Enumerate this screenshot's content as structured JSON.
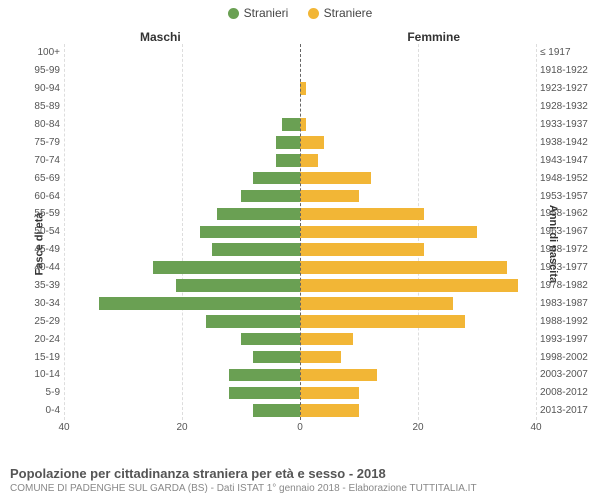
{
  "legend": {
    "left_label": "Stranieri",
    "right_label": "Straniere",
    "male_color": "#6aa053",
    "female_color": "#f2b636"
  },
  "headers": {
    "left": "Maschi",
    "right": "Femmine"
  },
  "axis_labels": {
    "left": "Fasce di età",
    "right": "Anni di nascita"
  },
  "chart": {
    "type": "population-pyramid",
    "xlim": 40,
    "xticks": [
      40,
      20,
      0,
      20,
      40
    ],
    "background_color": "#ffffff",
    "grid_color": "#dddddd",
    "center_line_color": "#666666",
    "bar_fill_ratio": 0.7,
    "categories": [
      {
        "age": "100+",
        "year": "≤ 1917",
        "male": 0,
        "female": 0
      },
      {
        "age": "95-99",
        "year": "1918-1922",
        "male": 0,
        "female": 0
      },
      {
        "age": "90-94",
        "year": "1923-1927",
        "male": 0,
        "female": 1
      },
      {
        "age": "85-89",
        "year": "1928-1932",
        "male": 0,
        "female": 0
      },
      {
        "age": "80-84",
        "year": "1933-1937",
        "male": 3,
        "female": 1
      },
      {
        "age": "75-79",
        "year": "1938-1942",
        "male": 4,
        "female": 4
      },
      {
        "age": "70-74",
        "year": "1943-1947",
        "male": 4,
        "female": 3
      },
      {
        "age": "65-69",
        "year": "1948-1952",
        "male": 8,
        "female": 12
      },
      {
        "age": "60-64",
        "year": "1953-1957",
        "male": 10,
        "female": 10
      },
      {
        "age": "55-59",
        "year": "1958-1962",
        "male": 14,
        "female": 21
      },
      {
        "age": "50-54",
        "year": "1963-1967",
        "male": 17,
        "female": 30
      },
      {
        "age": "45-49",
        "year": "1968-1972",
        "male": 15,
        "female": 21
      },
      {
        "age": "40-44",
        "year": "1973-1977",
        "male": 25,
        "female": 35
      },
      {
        "age": "35-39",
        "year": "1978-1982",
        "male": 21,
        "female": 37
      },
      {
        "age": "30-34",
        "year": "1983-1987",
        "male": 34,
        "female": 26
      },
      {
        "age": "25-29",
        "year": "1988-1992",
        "male": 16,
        "female": 28
      },
      {
        "age": "20-24",
        "year": "1993-1997",
        "male": 10,
        "female": 9
      },
      {
        "age": "15-19",
        "year": "1998-2002",
        "male": 8,
        "female": 7
      },
      {
        "age": "10-14",
        "year": "2003-2007",
        "male": 12,
        "female": 13
      },
      {
        "age": "5-9",
        "year": "2008-2012",
        "male": 12,
        "female": 10
      },
      {
        "age": "0-4",
        "year": "2013-2017",
        "male": 8,
        "female": 10
      }
    ]
  },
  "footer": {
    "title": "Popolazione per cittadinanza straniera per età e sesso - 2018",
    "subtitle": "COMUNE DI PADENGHE SUL GARDA (BS) - Dati ISTAT 1° gennaio 2018 - Elaborazione TUTTITALIA.IT"
  }
}
